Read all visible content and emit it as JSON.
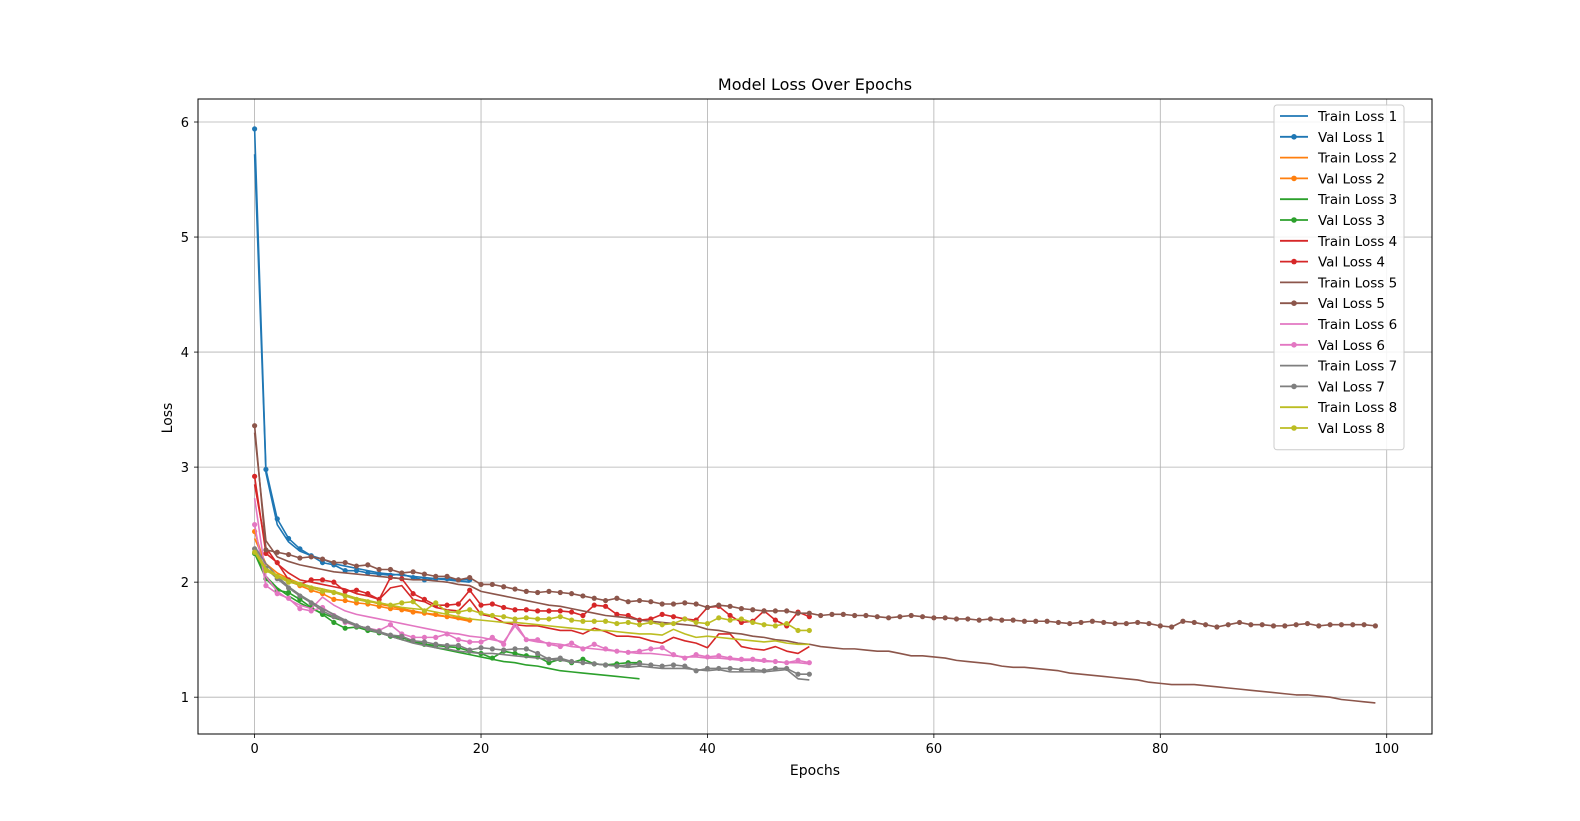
{
  "chart_data": {
    "type": "line",
    "title": "Model Loss Over Epochs",
    "xlabel": "Epochs",
    "ylabel": "Loss",
    "xlim": [
      -5,
      104
    ],
    "ylim": [
      0.68,
      6.2
    ],
    "xticks": [
      0,
      20,
      40,
      60,
      80,
      100
    ],
    "yticks": [
      1,
      2,
      3,
      4,
      5,
      6
    ],
    "grid": true,
    "legend_position": "top-right",
    "series": [
      {
        "name": "Train Loss 1",
        "color": "#1f77b4",
        "marker": false,
        "values": [
          5.72,
          2.95,
          2.5,
          2.35,
          2.27,
          2.23,
          2.2,
          2.16,
          2.14,
          2.12,
          2.1,
          2.08,
          2.07,
          2.06,
          2.05,
          2.04,
          2.03,
          2.02,
          2.01,
          2.0
        ]
      },
      {
        "name": "Val Loss 1",
        "color": "#1f77b4",
        "marker": true,
        "values": [
          5.94,
          2.98,
          2.55,
          2.38,
          2.29,
          2.23,
          2.17,
          2.15,
          2.1,
          2.1,
          2.08,
          2.07,
          2.06,
          2.07,
          2.04,
          2.02,
          2.03,
          2.03,
          2.02,
          2.02
        ]
      },
      {
        "name": "Train Loss 2",
        "color": "#ff7f0e",
        "marker": false,
        "values": [
          2.38,
          2.16,
          2.08,
          2.03,
          1.99,
          1.96,
          1.94,
          1.91,
          1.89,
          1.86,
          1.84,
          1.81,
          1.79,
          1.77,
          1.75,
          1.73,
          1.71,
          1.7,
          1.68,
          1.66
        ]
      },
      {
        "name": "Val Loss 2",
        "color": "#ff7f0e",
        "marker": true,
        "values": [
          2.44,
          2.12,
          2.05,
          2.01,
          1.97,
          1.93,
          1.9,
          1.85,
          1.84,
          1.82,
          1.81,
          1.79,
          1.77,
          1.76,
          1.74,
          1.73,
          1.72,
          1.7,
          1.69,
          1.67
        ]
      },
      {
        "name": "Train Loss 3",
        "color": "#2ca02c",
        "marker": false,
        "values": [
          2.27,
          2.05,
          1.95,
          1.88,
          1.82,
          1.77,
          1.73,
          1.69,
          1.66,
          1.62,
          1.6,
          1.57,
          1.53,
          1.5,
          1.48,
          1.46,
          1.43,
          1.41,
          1.39,
          1.37,
          1.35,
          1.33,
          1.31,
          1.3,
          1.28,
          1.27,
          1.25,
          1.23,
          1.22,
          1.21,
          1.2,
          1.19,
          1.18,
          1.17,
          1.16
        ]
      },
      {
        "name": "Val Loss 3",
        "color": "#2ca02c",
        "marker": true,
        "values": [
          2.25,
          2.03,
          1.93,
          1.91,
          1.85,
          1.78,
          1.72,
          1.65,
          1.6,
          1.61,
          1.58,
          1.56,
          1.53,
          1.52,
          1.49,
          1.46,
          1.45,
          1.44,
          1.43,
          1.4,
          1.38,
          1.34,
          1.4,
          1.38,
          1.36,
          1.35,
          1.3,
          1.33,
          1.3,
          1.33,
          1.29,
          1.28,
          1.29,
          1.3,
          1.3
        ]
      },
      {
        "name": "Train Loss 4",
        "color": "#d62728",
        "marker": false,
        "values": [
          2.85,
          2.3,
          2.16,
          2.08,
          2.02,
          2.0,
          1.98,
          1.96,
          1.94,
          1.9,
          1.88,
          1.85,
          1.95,
          1.97,
          1.85,
          1.83,
          1.78,
          1.76,
          1.75,
          1.85,
          1.72,
          1.7,
          1.65,
          1.63,
          1.62,
          1.62,
          1.6,
          1.58,
          1.58,
          1.55,
          1.6,
          1.57,
          1.53,
          1.53,
          1.52,
          1.49,
          1.47,
          1.52,
          1.49,
          1.47,
          1.43,
          1.55,
          1.55,
          1.44,
          1.42,
          1.41,
          1.44,
          1.4,
          1.38,
          1.44
        ]
      },
      {
        "name": "Val Loss 4",
        "color": "#d62728",
        "marker": true,
        "values": [
          2.92,
          2.25,
          2.17,
          2.02,
          1.98,
          2.02,
          2.02,
          2.0,
          1.92,
          1.93,
          1.9,
          1.85,
          2.04,
          2.03,
          1.9,
          1.85,
          1.8,
          1.8,
          1.81,
          1.93,
          1.8,
          1.81,
          1.78,
          1.76,
          1.76,
          1.75,
          1.75,
          1.75,
          1.74,
          1.71,
          1.8,
          1.79,
          1.72,
          1.71,
          1.67,
          1.68,
          1.72,
          1.7,
          1.68,
          1.67,
          1.78,
          1.79,
          1.71,
          1.65,
          1.66,
          1.75,
          1.67,
          1.62,
          1.74,
          1.7
        ]
      },
      {
        "name": "Train Loss 5",
        "color": "#8c564b",
        "marker": false,
        "values": [
          3.3,
          2.36,
          2.22,
          2.18,
          2.15,
          2.13,
          2.11,
          2.09,
          2.08,
          2.07,
          2.06,
          2.05,
          2.04,
          2.03,
          2.02,
          2.02,
          2.01,
          2.0,
          1.98,
          1.97,
          1.92,
          1.9,
          1.88,
          1.86,
          1.84,
          1.82,
          1.8,
          1.79,
          1.77,
          1.75,
          1.73,
          1.71,
          1.7,
          1.69,
          1.67,
          1.66,
          1.65,
          1.64,
          1.63,
          1.62,
          1.59,
          1.58,
          1.56,
          1.55,
          1.53,
          1.52,
          1.5,
          1.49,
          1.47,
          1.46,
          1.44,
          1.43,
          1.42,
          1.42,
          1.41,
          1.4,
          1.4,
          1.38,
          1.36,
          1.36,
          1.35,
          1.34,
          1.32,
          1.31,
          1.3,
          1.29,
          1.27,
          1.26,
          1.26,
          1.25,
          1.24,
          1.23,
          1.21,
          1.2,
          1.19,
          1.18,
          1.17,
          1.16,
          1.15,
          1.13,
          1.12,
          1.11,
          1.11,
          1.11,
          1.1,
          1.09,
          1.08,
          1.07,
          1.06,
          1.05,
          1.04,
          1.03,
          1.02,
          1.02,
          1.01,
          1.0,
          0.98,
          0.97,
          0.96,
          0.95
        ]
      },
      {
        "name": "Val Loss 5",
        "color": "#8c564b",
        "marker": true,
        "values": [
          3.36,
          2.28,
          2.26,
          2.24,
          2.21,
          2.22,
          2.2,
          2.17,
          2.17,
          2.14,
          2.15,
          2.11,
          2.11,
          2.08,
          2.09,
          2.07,
          2.05,
          2.05,
          2.02,
          2.04,
          1.98,
          1.98,
          1.96,
          1.94,
          1.92,
          1.91,
          1.92,
          1.91,
          1.9,
          1.88,
          1.86,
          1.84,
          1.86,
          1.83,
          1.84,
          1.83,
          1.81,
          1.81,
          1.82,
          1.81,
          1.78,
          1.8,
          1.79,
          1.77,
          1.76,
          1.75,
          1.75,
          1.75,
          1.73,
          1.73,
          1.71,
          1.72,
          1.72,
          1.71,
          1.71,
          1.7,
          1.69,
          1.7,
          1.71,
          1.7,
          1.69,
          1.69,
          1.68,
          1.68,
          1.67,
          1.68,
          1.67,
          1.67,
          1.66,
          1.66,
          1.66,
          1.65,
          1.64,
          1.65,
          1.66,
          1.65,
          1.64,
          1.64,
          1.65,
          1.64,
          1.62,
          1.61,
          1.66,
          1.65,
          1.63,
          1.61,
          1.63,
          1.65,
          1.63,
          1.63,
          1.62,
          1.62,
          1.63,
          1.64,
          1.62,
          1.63,
          1.63,
          1.63,
          1.63,
          1.62
        ]
      },
      {
        "name": "Train Loss 6",
        "color": "#e377c2",
        "marker": false,
        "values": [
          2.73,
          2.05,
          1.92,
          1.85,
          1.8,
          1.77,
          1.87,
          1.8,
          1.75,
          1.72,
          1.7,
          1.68,
          1.66,
          1.64,
          1.62,
          1.6,
          1.58,
          1.56,
          1.55,
          1.53,
          1.52,
          1.5,
          1.48,
          1.62,
          1.5,
          1.48,
          1.47,
          1.46,
          1.44,
          1.43,
          1.42,
          1.41,
          1.4,
          1.39,
          1.38,
          1.38,
          1.37,
          1.36,
          1.35,
          1.35,
          1.34,
          1.34,
          1.33,
          1.32,
          1.32,
          1.31,
          1.31,
          1.3,
          1.3,
          1.29
        ]
      },
      {
        "name": "Val Loss 6",
        "color": "#e377c2",
        "marker": true,
        "values": [
          2.5,
          1.97,
          1.9,
          1.86,
          1.77,
          1.75,
          1.78,
          1.71,
          1.65,
          1.62,
          1.6,
          1.58,
          1.63,
          1.55,
          1.52,
          1.52,
          1.52,
          1.55,
          1.5,
          1.48,
          1.48,
          1.52,
          1.46,
          1.65,
          1.5,
          1.5,
          1.46,
          1.44,
          1.47,
          1.42,
          1.46,
          1.42,
          1.4,
          1.39,
          1.4,
          1.42,
          1.43,
          1.37,
          1.34,
          1.37,
          1.35,
          1.36,
          1.34,
          1.33,
          1.33,
          1.32,
          1.31,
          1.3,
          1.32,
          1.3
        ]
      },
      {
        "name": "Train Loss 7",
        "color": "#7f7f7f",
        "marker": false,
        "values": [
          2.31,
          2.16,
          2.05,
          1.96,
          1.89,
          1.83,
          1.77,
          1.72,
          1.67,
          1.63,
          1.59,
          1.56,
          1.53,
          1.5,
          1.47,
          1.45,
          1.43,
          1.42,
          1.4,
          1.39,
          1.38,
          1.38,
          1.37,
          1.36,
          1.35,
          1.34,
          1.33,
          1.32,
          1.31,
          1.3,
          1.29,
          1.28,
          1.27,
          1.26,
          1.27,
          1.26,
          1.25,
          1.25,
          1.25,
          1.24,
          1.23,
          1.24,
          1.22,
          1.22,
          1.22,
          1.22,
          1.23,
          1.24,
          1.16,
          1.15
        ]
      },
      {
        "name": "Val Loss 7",
        "color": "#7f7f7f",
        "marker": true,
        "values": [
          2.29,
          2.12,
          2.03,
          1.95,
          1.88,
          1.82,
          1.75,
          1.7,
          1.66,
          1.62,
          1.6,
          1.57,
          1.54,
          1.53,
          1.49,
          1.48,
          1.46,
          1.45,
          1.45,
          1.41,
          1.43,
          1.42,
          1.41,
          1.42,
          1.42,
          1.38,
          1.33,
          1.34,
          1.31,
          1.3,
          1.29,
          1.28,
          1.27,
          1.28,
          1.29,
          1.28,
          1.27,
          1.28,
          1.27,
          1.23,
          1.25,
          1.25,
          1.25,
          1.24,
          1.24,
          1.23,
          1.25,
          1.25,
          1.2,
          1.2
        ]
      },
      {
        "name": "Train Loss 8",
        "color": "#bcbd22",
        "marker": false,
        "values": [
          2.28,
          2.12,
          2.06,
          2.02,
          1.99,
          1.96,
          1.94,
          1.92,
          1.89,
          1.86,
          1.84,
          1.82,
          1.8,
          1.78,
          1.77,
          1.76,
          1.74,
          1.72,
          1.7,
          1.68,
          1.67,
          1.66,
          1.65,
          1.65,
          1.64,
          1.63,
          1.62,
          1.61,
          1.6,
          1.59,
          1.58,
          1.58,
          1.57,
          1.56,
          1.55,
          1.55,
          1.54,
          1.59,
          1.55,
          1.52,
          1.53,
          1.52,
          1.51,
          1.5,
          1.49,
          1.48,
          1.49,
          1.47,
          1.46,
          1.46
        ]
      },
      {
        "name": "Val Loss 8",
        "color": "#bcbd22",
        "marker": true,
        "values": [
          2.26,
          2.1,
          2.05,
          2.0,
          1.98,
          1.95,
          1.92,
          1.91,
          1.88,
          1.85,
          1.83,
          1.82,
          1.8,
          1.82,
          1.83,
          1.75,
          1.82,
          1.74,
          1.74,
          1.76,
          1.73,
          1.71,
          1.7,
          1.68,
          1.69,
          1.68,
          1.68,
          1.7,
          1.67,
          1.66,
          1.66,
          1.66,
          1.64,
          1.65,
          1.63,
          1.65,
          1.63,
          1.64,
          1.68,
          1.65,
          1.64,
          1.69,
          1.67,
          1.68,
          1.65,
          1.63,
          1.62,
          1.64,
          1.58,
          1.58
        ]
      }
    ]
  }
}
